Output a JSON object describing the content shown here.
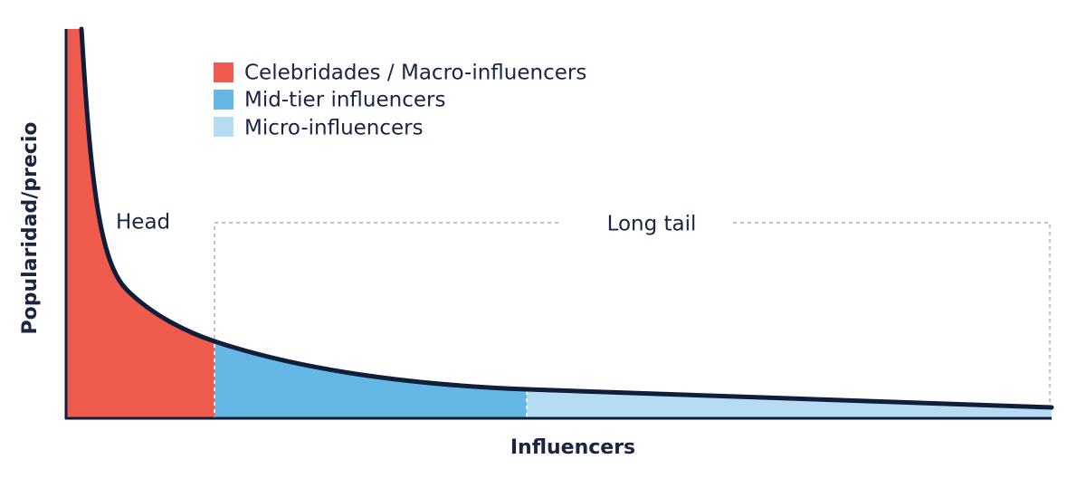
{
  "legend": {
    "items": [
      "Celebridades / Macro-influencers",
      "Mid-tier influencers",
      "Micro-influencers"
    ]
  },
  "annotations": {
    "head": "Head",
    "long_tail": "Long tail"
  },
  "axes": {
    "y_label": "Popularidad/precio",
    "x_label": "Influencers"
  }
}
